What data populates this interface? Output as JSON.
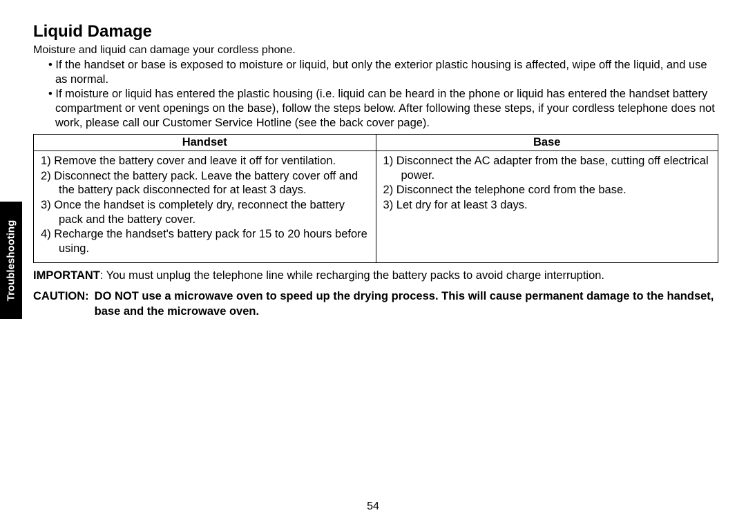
{
  "sideTab": "Troubleshooting",
  "title": "Liquid Damage",
  "intro": "Moisture and liquid can damage your cordless phone.",
  "bullets": [
    "If the handset or base is exposed to moisture or liquid, but only the exterior plastic housing is affected, wipe off the liquid, and use as normal.",
    "If moisture or liquid has entered the plastic housing (i.e. liquid can be heard in the phone or liquid has entered the handset battery compartment or vent openings on the base), follow the steps below. After following these steps, if your cordless telephone does not work, please call our Customer Service Hotline (see the back cover page)."
  ],
  "table": {
    "headers": {
      "col1": "Handset",
      "col2": "Base"
    },
    "handsetSteps": [
      "Remove the battery cover and leave it off for ventilation.",
      "Disconnect the battery pack. Leave the battery cover off and the battery pack disconnected for at least 3 days.",
      "Once the handset is completely dry, reconnect the battery pack and the battery cover.",
      "Recharge the handset's battery pack for 15 to 20 hours before using."
    ],
    "baseSteps": [
      "Disconnect the AC adapter from the base, cutting off electrical power.",
      "Disconnect the telephone cord from the base.",
      "Let dry for at least 3 days."
    ]
  },
  "important": {
    "lead": "IMPORTANT",
    "text": ": You must unplug the telephone line while recharging the battery packs to avoid charge interruption."
  },
  "caution": {
    "lead": "CAUTION:",
    "text": "DO NOT use a microwave oven to speed up the drying process. This will cause permanent damage to the handset, base and the microwave oven."
  },
  "pageNumber": "54",
  "colors": {
    "background": "#ffffff",
    "text": "#000000",
    "tabBg": "#000000",
    "tabText": "#ffffff",
    "border": "#000000"
  },
  "typography": {
    "titleFontSize": 24,
    "bodyFontSize": 16.5,
    "fontFamily": "Arial, Helvetica, sans-serif"
  }
}
